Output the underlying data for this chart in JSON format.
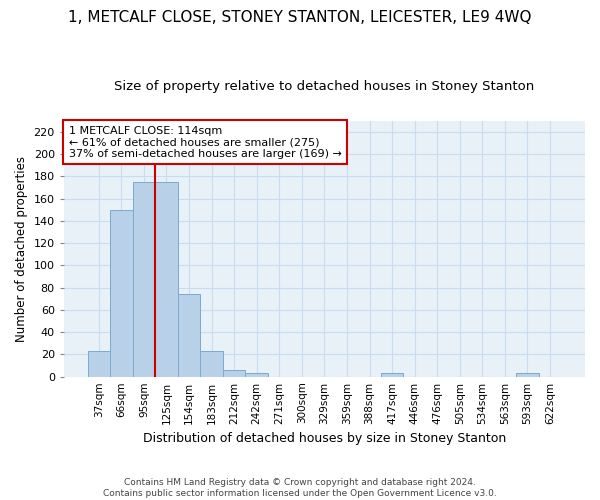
{
  "title": "1, METCALF CLOSE, STONEY STANTON, LEICESTER, LE9 4WQ",
  "subtitle": "Size of property relative to detached houses in Stoney Stanton",
  "xlabel": "Distribution of detached houses by size in Stoney Stanton",
  "ylabel": "Number of detached properties",
  "bar_color": "#b8d0e8",
  "bar_edge_color": "#7aaad0",
  "grid_color": "#c8ddf0",
  "plot_bg_color": "#e8f0f8",
  "fig_bg_color": "#ffffff",
  "categories": [
    "37sqm",
    "66sqm",
    "95sqm",
    "125sqm",
    "154sqm",
    "183sqm",
    "212sqm",
    "242sqm",
    "271sqm",
    "300sqm",
    "329sqm",
    "359sqm",
    "388sqm",
    "417sqm",
    "446sqm",
    "476sqm",
    "505sqm",
    "534sqm",
    "563sqm",
    "593sqm",
    "622sqm"
  ],
  "values": [
    23,
    150,
    175,
    175,
    74,
    23,
    6,
    3,
    0,
    0,
    0,
    0,
    0,
    3,
    0,
    0,
    0,
    0,
    0,
    3,
    0
  ],
  "vline_bin_index": 3,
  "vline_color": "#cc0000",
  "annotation_text": "1 METCALF CLOSE: 114sqm\n← 61% of detached houses are smaller (275)\n37% of semi-detached houses are larger (169) →",
  "annotation_box_color": "#ffffff",
  "annotation_box_edge": "#cc0000",
  "ylim": [
    0,
    230
  ],
  "yticks": [
    0,
    20,
    40,
    60,
    80,
    100,
    120,
    140,
    160,
    180,
    200,
    220
  ],
  "title_fontsize": 11,
  "subtitle_fontsize": 9.5,
  "footnote": "Contains HM Land Registry data © Crown copyright and database right 2024.\nContains public sector information licensed under the Open Government Licence v3.0."
}
